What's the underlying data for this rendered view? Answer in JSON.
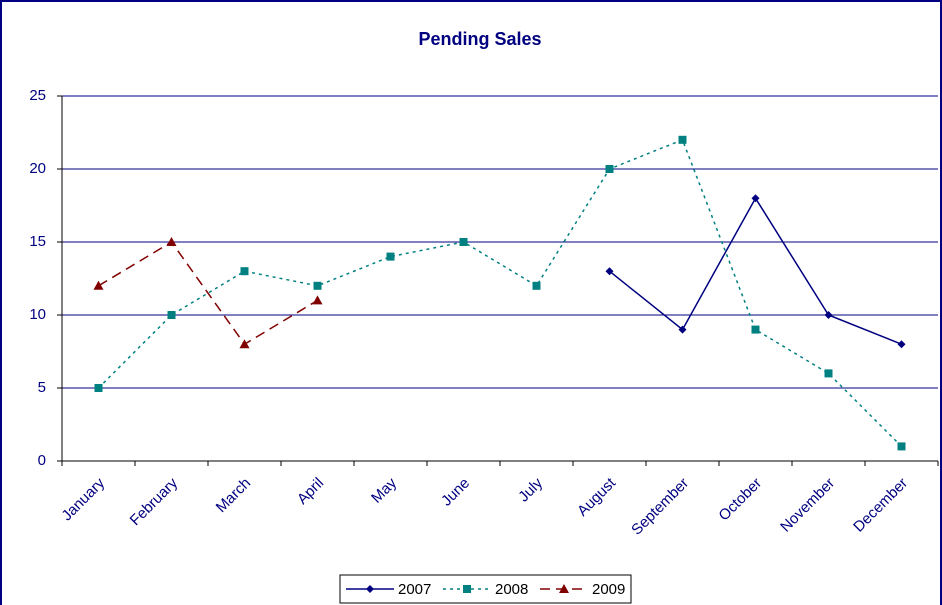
{
  "chart_data": {
    "type": "line",
    "title": "Pending Sales",
    "categories": [
      "January",
      "February",
      "March",
      "April",
      "May",
      "June",
      "July",
      "August",
      "September",
      "October",
      "November",
      "December"
    ],
    "series": [
      {
        "name": "2007",
        "color": "#000080",
        "dash": "solid",
        "marker": "diamond",
        "values": [
          null,
          null,
          null,
          null,
          null,
          null,
          null,
          13,
          9,
          18,
          10,
          8
        ]
      },
      {
        "name": "2008",
        "color": "#008080",
        "dash": "dotted",
        "marker": "square",
        "values": [
          5,
          10,
          13,
          12,
          14,
          15,
          12,
          20,
          22,
          9,
          6,
          1
        ]
      },
      {
        "name": "2009",
        "color": "#800000",
        "dash": "dashed",
        "marker": "triangle",
        "values": [
          12,
          15,
          8,
          11,
          null,
          null,
          null,
          null,
          null,
          null,
          null,
          null
        ]
      }
    ],
    "ylim": [
      0,
      25
    ],
    "yticks": [
      0,
      5,
      10,
      15,
      20,
      25
    ],
    "grid": true,
    "legend": "bottom"
  }
}
